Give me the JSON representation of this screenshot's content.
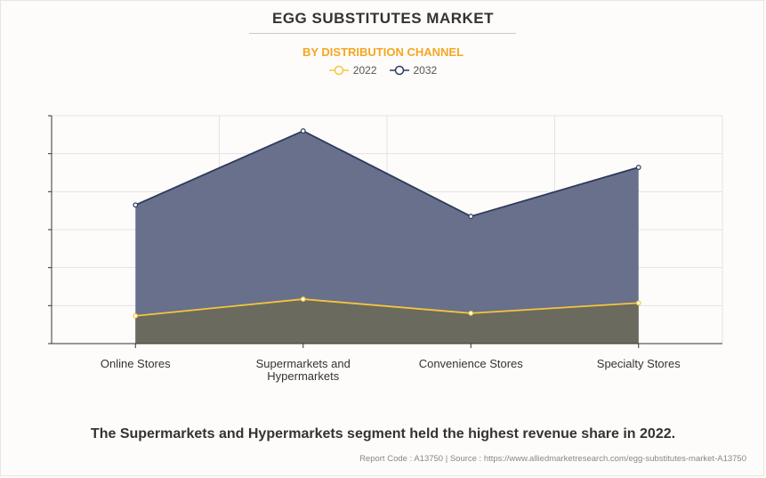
{
  "chart_data": {
    "type": "area",
    "title": "EGG SUBSTITUTES MARKET",
    "subtitle": "BY DISTRIBUTION CHANNEL",
    "categories": [
      "Online Stores",
      "Supermarkets and Hypermarkets",
      "Convenience Stores",
      "Specialty Stores"
    ],
    "category_lines": [
      [
        "Online Stores"
      ],
      [
        "Supermarkets and",
        "Hypermarkets"
      ],
      [
        "Convenience Stores"
      ],
      [
        "Specialty Stores"
      ]
    ],
    "series": [
      {
        "name": "2022",
        "values": [
          0.73,
          1.17,
          0.8,
          1.07
        ],
        "color": "#f5c53c",
        "fill": "#6b6a5e"
      },
      {
        "name": "2032",
        "values": [
          3.65,
          5.6,
          3.35,
          4.64
        ],
        "color": "#2e3a5c",
        "fill": "#68708b"
      }
    ],
    "ylim": [
      0,
      6
    ],
    "y_tick_count": 6,
    "y_tick_labels_shown": false,
    "grid": true,
    "legend_position": "top-center"
  },
  "caption": "The Supermarkets and Hypermarkets segment held the highest revenue share in 2022.",
  "source_note": "Report Code : A13750  |  Source : https://www.alliedmarketresearch.com/egg-substitutes-market-A13750"
}
